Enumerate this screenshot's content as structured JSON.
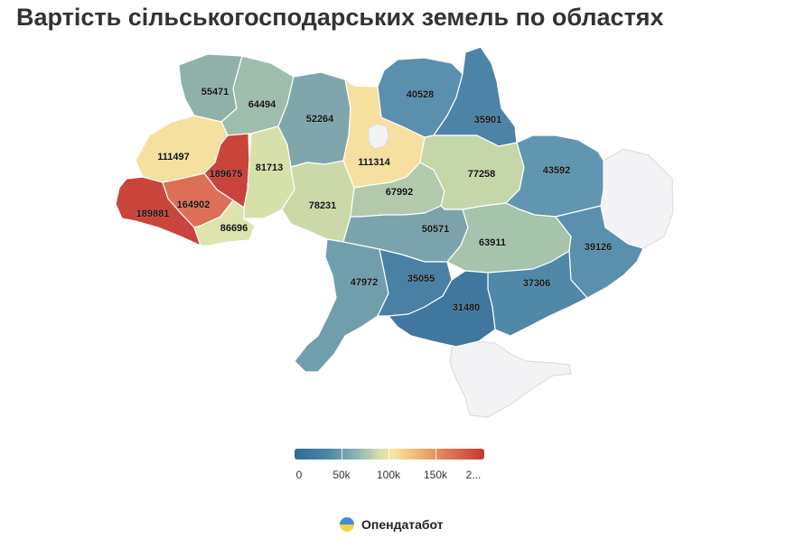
{
  "title": "Вартість сільськогосподарських земель по областях",
  "legend": {
    "labels": [
      "0",
      "50k",
      "100k",
      "150k",
      "2..."
    ],
    "colors": [
      "#2e6a96",
      "#4c87a7",
      "#8fb5b4",
      "#d8dfae",
      "#f5e6a0",
      "#f0b272",
      "#e17a59",
      "#c23b33"
    ]
  },
  "regions": [
    {
      "id": "volyn",
      "value": "55471",
      "color": "#8fb1aa"
    },
    {
      "id": "rivne",
      "value": "64494",
      "color": "#9fbdad"
    },
    {
      "id": "zhytomyr",
      "value": "52264",
      "color": "#7fa7ab"
    },
    {
      "id": "kyiv-oblast",
      "value": "111314",
      "color": "#f5e0a0"
    },
    {
      "id": "kyiv-city",
      "value": "",
      "color": "#f3f3f5"
    },
    {
      "id": "chernihiv",
      "value": "40528",
      "color": "#5a8fad"
    },
    {
      "id": "sumy",
      "value": "35901",
      "color": "#4d83a6"
    },
    {
      "id": "lviv",
      "value": "111497",
      "color": "#f5e0a0"
    },
    {
      "id": "ternopil",
      "value": "189675",
      "color": "#c9453b"
    },
    {
      "id": "khmelnytskyi",
      "value": "81713",
      "color": "#d6e0aa"
    },
    {
      "id": "zakarpattia",
      "value": "189881",
      "color": "#c9453b"
    },
    {
      "id": "ivano-frankivsk",
      "value": "164902",
      "color": "#dc6f55"
    },
    {
      "id": "chernivtsi",
      "value": "86696",
      "color": "#dde3ac"
    },
    {
      "id": "vinnytsia",
      "value": "78231",
      "color": "#cbd9a8"
    },
    {
      "id": "cherkasy",
      "value": "67992",
      "color": "#b2c9ab"
    },
    {
      "id": "poltava",
      "value": "77258",
      "color": "#c5d7a8"
    },
    {
      "id": "kharkiv",
      "value": "43592",
      "color": "#6196b0"
    },
    {
      "id": "luhansk-occupied",
      "value": "",
      "color": "#f3f3f5"
    },
    {
      "id": "kirovohrad",
      "value": "50571",
      "color": "#7aa3ab"
    },
    {
      "id": "dnipro",
      "value": "63911",
      "color": "#a6c3ab"
    },
    {
      "id": "donetsk",
      "value": "39126",
      "color": "#5a90ae"
    },
    {
      "id": "odesa",
      "value": "47972",
      "color": "#709ead"
    },
    {
      "id": "mykolaiv",
      "value": "35055",
      "color": "#4a80a3"
    },
    {
      "id": "zaporizhzhia",
      "value": "37306",
      "color": "#5088a8"
    },
    {
      "id": "kherson",
      "value": "31480",
      "color": "#3f779f"
    },
    {
      "id": "crimea",
      "value": "",
      "color": "#f3f3f5"
    }
  ],
  "brand": {
    "name": "Опендатабот",
    "icon": "opendatabot-logo-icon",
    "icon_colors": [
      "#3b8fd6",
      "#f7d23a"
    ]
  }
}
